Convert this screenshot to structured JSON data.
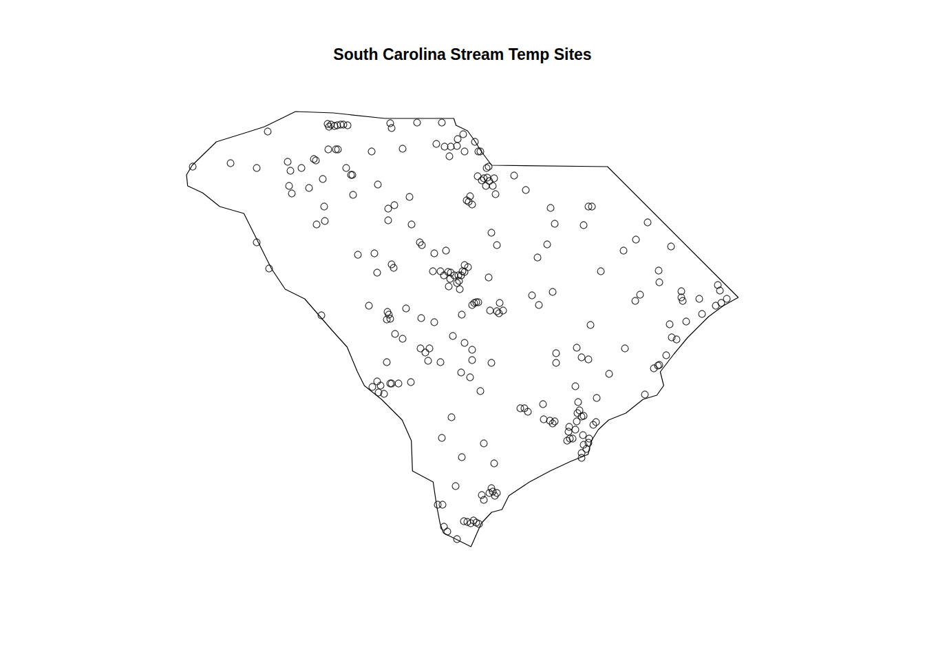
{
  "chart_data": {
    "type": "scatter",
    "title": "South Carolina Stream Temp Sites",
    "xlim": [
      -83.35,
      -78.544
    ],
    "ylim": [
      32.045,
      35.22
    ],
    "tick_labels": false,
    "grid": false,
    "marker": "circle",
    "color": "#000000",
    "outline": [
      [
        -83.3,
        34.82
      ],
      [
        -83.09,
        34.99
      ],
      [
        -82.82,
        35.06
      ],
      [
        -82.67,
        35.1
      ],
      [
        -82.4,
        35.21
      ],
      [
        -82.07,
        35.2
      ],
      [
        -81.62,
        35.16
      ],
      [
        -81.02,
        35.16
      ],
      [
        -81.0,
        35.11
      ],
      [
        -80.9,
        35.07
      ],
      [
        -80.84,
        35.0
      ],
      [
        -80.78,
        34.92
      ],
      [
        -80.69,
        34.82
      ],
      [
        -79.68,
        34.81
      ],
      [
        -78.54,
        33.86
      ],
      [
        -78.67,
        33.8
      ],
      [
        -78.8,
        33.72
      ],
      [
        -78.98,
        33.57
      ],
      [
        -79.1,
        33.45
      ],
      [
        -79.22,
        33.32
      ],
      [
        -79.19,
        33.22
      ],
      [
        -79.25,
        33.15
      ],
      [
        -79.37,
        33.12
      ],
      [
        -79.52,
        33.02
      ],
      [
        -79.67,
        32.97
      ],
      [
        -79.76,
        32.9
      ],
      [
        -79.82,
        32.82
      ],
      [
        -79.85,
        32.72
      ],
      [
        -80.0,
        32.67
      ],
      [
        -80.18,
        32.6
      ],
      [
        -80.36,
        32.52
      ],
      [
        -80.54,
        32.42
      ],
      [
        -80.6,
        32.32
      ],
      [
        -80.69,
        32.3
      ],
      [
        -80.78,
        32.22
      ],
      [
        -80.87,
        32.05
      ],
      [
        -81.11,
        32.15
      ],
      [
        -81.14,
        32.22
      ],
      [
        -81.17,
        32.35
      ],
      [
        -81.2,
        32.52
      ],
      [
        -81.38,
        32.6
      ],
      [
        -81.39,
        32.82
      ],
      [
        -81.47,
        32.97
      ],
      [
        -81.65,
        33.12
      ],
      [
        -81.8,
        33.22
      ],
      [
        -81.86,
        33.32
      ],
      [
        -81.95,
        33.5
      ],
      [
        -82.08,
        33.62
      ],
      [
        -82.32,
        33.85
      ],
      [
        -82.49,
        33.92
      ],
      [
        -82.61,
        34.07
      ],
      [
        -82.73,
        34.27
      ],
      [
        -82.85,
        34.47
      ],
      [
        -83.06,
        34.52
      ],
      [
        -83.21,
        34.62
      ],
      [
        -83.34,
        34.67
      ],
      [
        -83.35,
        34.75
      ]
    ],
    "x": [
      -82.642,
      -82.12,
      -82.108,
      -82.09,
      -82.06,
      -82.036,
      -82.006,
      -81.982,
      -81.946,
      -81.574,
      -81.562,
      -81.34,
      -81.124,
      -83.296,
      -82.966,
      -82.738,
      -82.468,
      -82.444,
      -82.348,
      -82.24,
      -82.222,
      -82.114,
      -82.048,
      -82.03,
      -81.736,
      -81.466,
      -81.958,
      -81.916,
      -81.904,
      -82.162,
      -82.456,
      -82.432,
      -82.282,
      -81.898,
      -81.682,
      -81.172,
      -81.1,
      -81.046,
      -81.058,
      -80.986,
      -80.938,
      -80.992,
      -80.926,
      -80.836,
      -80.806,
      -80.788,
      -80.716,
      -80.734,
      -80.812,
      -80.776,
      -80.758,
      -80.728,
      -80.71,
      -80.68,
      -80.668,
      -80.74,
      -80.494,
      -80.392,
      -80.908,
      -80.878,
      -80.86,
      -80.89,
      -81.538,
      -81.592,
      -81.406,
      -82.15,
      -82.144,
      -82.216,
      -81.592,
      -81.388,
      -80.656,
      -80.176,
      -79.846,
      -79.816,
      -80.14,
      -79.888,
      -79.33,
      -80.692,
      -80.644,
      -80.206,
      -80.29,
      -79.432,
      -79.54,
      -79.126,
      -79.738,
      -79.234,
      -79.228,
      -79.036,
      -79.036,
      -79.024,
      -78.88,
      -79.396,
      -79.438,
      -78.718,
      -78.7,
      -78.736,
      -78.688,
      -78.64,
      -78.856,
      -78.994,
      -79.138,
      -79.12,
      -79.078,
      -79.168,
      -79.24,
      -79.276,
      -79.228,
      -79.354,
      -79.528,
      -79.828,
      -80.338,
      -80.278,
      -80.158,
      -82.738,
      -82.63,
      -82.174,
      -81.316,
      -81.298,
      -81.088,
      -81.19,
      -81.856,
      -81.712,
      -81.688,
      -81.562,
      -81.544,
      -81.202,
      -81.136,
      -81.106,
      -81.07,
      -81.046,
      -81.052,
      -81.016,
      -80.98,
      -80.974,
      -80.956,
      -80.944,
      -80.926,
      -80.896,
      -80.926,
      -80.992,
      -80.968,
      -81.064,
      -80.716,
      -81.76,
      -81.598,
      -81.586,
      -81.574,
      -81.604,
      -81.436,
      -81.304,
      -81.19,
      -81.532,
      -81.466,
      -81.028,
      -80.926,
      -80.86,
      -80.95,
      -80.842,
      -80.824,
      -80.806,
      -80.86,
      -80.704,
      -80.644,
      -80.62,
      -80.59,
      -80.626,
      -81.31,
      -81.268,
      -81.232,
      -81.244,
      -81.136,
      -80.86,
      -80.692,
      -81.604,
      -80.956,
      -80.878,
      -80.788,
      -81.688,
      -81.658,
      -81.73,
      -81.676,
      -81.628,
      -81.574,
      -81.562,
      -81.502,
      -81.394,
      -80.128,
      -80.128,
      -79.948,
      -79.906,
      -79.846,
      -79.666,
      -79.96,
      -79.774,
      -79.936,
      -79.924,
      -79.942,
      -79.906,
      -79.948,
      -79.888,
      -80.44,
      -80.404,
      -80.374,
      -80.242,
      -80.236,
      -80.182,
      -80.158,
      -80.14,
      -80.014,
      -80.02,
      -80.008,
      -80.032,
      -79.984,
      -79.96,
      -79.894,
      -79.84,
      -79.804,
      -79.78,
      -79.888,
      -79.864,
      -79.906,
      -79.906,
      -79.846,
      -81.04,
      -81.124,
      -80.758,
      -80.95,
      -80.668,
      -81.004,
      -80.692,
      -80.68,
      -80.644,
      -80.662,
      -80.71,
      -80.776,
      -80.758,
      -81.16,
      -81.118,
      -81.106,
      -81.076,
      -80.992,
      -80.932,
      -80.902,
      -80.872,
      -80.848,
      -80.824,
      -80.8
    ],
    "values": [
      35.065,
      35.12,
      35.1,
      35.115,
      35.105,
      35.11,
      35.115,
      35.115,
      35.11,
      35.125,
      35.09,
      35.13,
      35.13,
      34.81,
      34.835,
      34.8,
      34.845,
      34.78,
      34.8,
      34.865,
      34.855,
      34.935,
      34.935,
      34.935,
      34.92,
      34.94,
      34.8,
      34.75,
      34.75,
      34.72,
      34.67,
      34.615,
      34.655,
      34.605,
      34.68,
      34.975,
      34.955,
      34.955,
      34.885,
      35.01,
      35.045,
      34.96,
      34.92,
      34.99,
      34.92,
      34.92,
      34.81,
      34.8,
      34.74,
      34.71,
      34.725,
      34.73,
      34.705,
      34.67,
      34.725,
      34.67,
      34.745,
      34.64,
      34.565,
      34.595,
      34.535,
      34.555,
      34.53,
      34.505,
      34.59,
      34.52,
      34.415,
      34.39,
      34.42,
      34.39,
      34.61,
      34.51,
      34.52,
      34.52,
      34.395,
      34.385,
      34.405,
      34.33,
      34.24,
      34.245,
      34.15,
      34.28,
      34.2,
      34.23,
      34.05,
      34.055,
      33.97,
      33.905,
      33.86,
      33.835,
      33.85,
      33.88,
      33.835,
      33.95,
      33.91,
      33.8,
      33.82,
      33.85,
      33.74,
      33.685,
      33.665,
      33.57,
      33.555,
      33.44,
      33.365,
      33.345,
      33.37,
      33.155,
      33.49,
      33.66,
      33.875,
      33.805,
      33.9,
      34.26,
      34.07,
      33.73,
      34.26,
      34.24,
      34.2,
      34.18,
      34.17,
      34.18,
      34.04,
      34.1,
      34.075,
      34.05,
      34.05,
      34.02,
      34.045,
      34.04,
      33.995,
      34.02,
      34.02,
      33.98,
      34.02,
      34.05,
      34.095,
      34.08,
      34.045,
      33.965,
      33.92,
      33.94,
      34.005,
      33.8,
      33.755,
      33.735,
      33.705,
      33.7,
      33.78,
      33.71,
      33.68,
      33.595,
      33.56,
      33.58,
      33.53,
      33.48,
      33.735,
      33.82,
      33.825,
      33.825,
      33.805,
      33.765,
      33.76,
      33.82,
      33.765,
      33.745,
      33.49,
      33.46,
      33.49,
      33.4,
      33.39,
      33.405,
      33.385,
      33.39,
      33.315,
      33.28,
      33.18,
      33.25,
      33.22,
      33.21,
      33.17,
      33.16,
      33.235,
      33.235,
      33.235,
      33.245,
      33.455,
      33.385,
      33.495,
      33.425,
      33.41,
      33.305,
      33.215,
      33.13,
      33.1,
      33.04,
      33.02,
      32.995,
      32.96,
      33.0,
      33.055,
      33.055,
      33.03,
      33.085,
      32.975,
      32.965,
      32.945,
      32.96,
      32.92,
      32.885,
      32.835,
      32.82,
      32.835,
      32.9,
      32.86,
      32.835,
      32.935,
      32.955,
      32.79,
      32.76,
      32.73,
      32.695,
      32.805,
      32.99,
      32.84,
      32.8,
      32.7,
      32.655,
      32.49,
      32.475,
      32.45,
      32.44,
      32.42,
      32.44,
      32.425,
      32.39,
      32.355,
      32.355,
      32.195,
      32.16,
      32.105,
      32.235,
      32.23,
      32.22,
      32.24,
      32.225,
      32.215
    ]
  }
}
